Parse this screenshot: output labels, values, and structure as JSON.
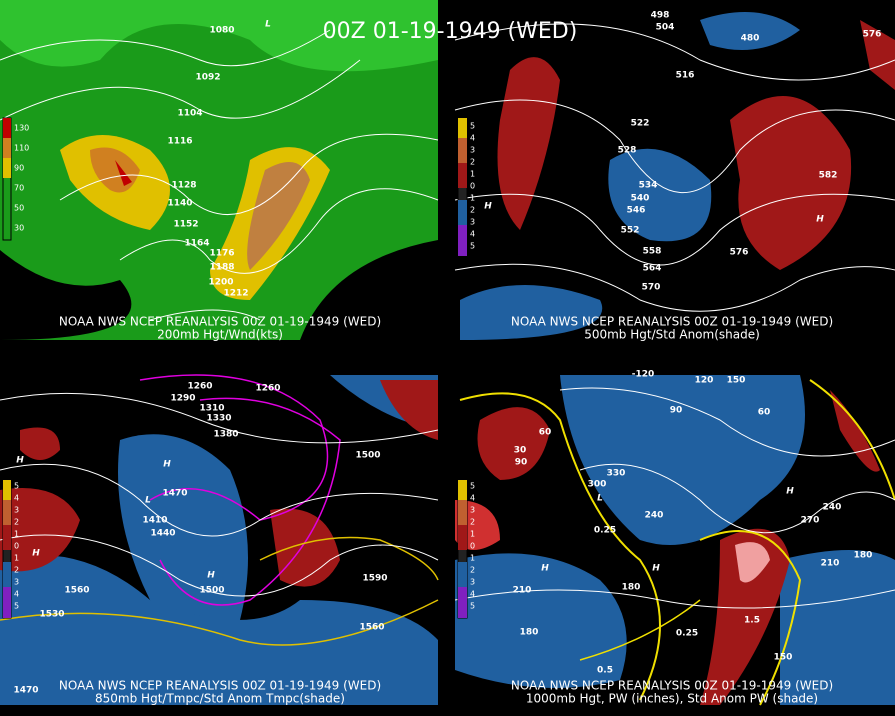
{
  "title": "00Z 01-19-1949 (WED)",
  "panels": [
    {
      "source": "NOAA NWS NCEP REANALYSIS 00Z 01-19-1949 (WED)",
      "caption": "200mb Hgt/Wnd(kts)",
      "legend": [
        "130",
        "110",
        "90",
        "70",
        "50",
        "30"
      ],
      "labels": [
        "1080",
        "1092",
        "1104",
        "1116",
        "1128",
        "1140",
        "1152",
        "1164",
        "1176",
        "1188",
        "1200",
        "1212",
        "L"
      ]
    },
    {
      "source": "NOAA NWS NCEP REANALYSIS 00Z 01-19-1949 (WED)",
      "caption": "500mb Hgt/Std Anom(shade)",
      "legend": [
        "5",
        "4",
        "3",
        "2",
        "1",
        "0",
        "1",
        "2",
        "3",
        "4",
        "5"
      ],
      "labels": [
        "498",
        "504",
        "516",
        "480",
        "522",
        "528",
        "534",
        "540",
        "546",
        "552",
        "558",
        "564",
        "570",
        "576",
        "582",
        "H",
        "H",
        "576"
      ]
    },
    {
      "source": "NOAA NWS NCEP REANALYSIS 00Z 01-19-1949 (WED)",
      "caption": "850mb Hgt/Tmpc/Std Anom Tmpc(shade)",
      "legend": [
        "5",
        "4",
        "3",
        "2",
        "1",
        "0",
        "1",
        "2",
        "3",
        "4",
        "5"
      ],
      "labels": [
        "1260",
        "1260",
        "1290",
        "1310",
        "1330",
        "1380",
        "1500",
        "1470",
        "1410",
        "1440",
        "1500",
        "1560",
        "1530",
        "1590",
        "1560",
        "1470",
        "H",
        "H",
        "H",
        "H",
        "L"
      ]
    },
    {
      "source": "NOAA NWS NCEP REANALYSIS 00Z 01-19-1949 (WED)",
      "caption": "1000mb Hgt, PW (inches), Std Anom PW (shade)",
      "legend": [
        "5",
        "4",
        "3",
        "2",
        "1",
        "0",
        "1",
        "2",
        "3",
        "4",
        "5"
      ],
      "labels": [
        "-120",
        "120",
        "150",
        "90",
        "60",
        "30",
        "90",
        "60",
        "300",
        "330",
        "240",
        "240",
        "270",
        "0.25",
        "180",
        "210",
        "180",
        "210",
        "180",
        "150",
        "1.5",
        "0.25",
        "0.5",
        "H",
        "H",
        "H",
        "L"
      ]
    }
  ]
}
